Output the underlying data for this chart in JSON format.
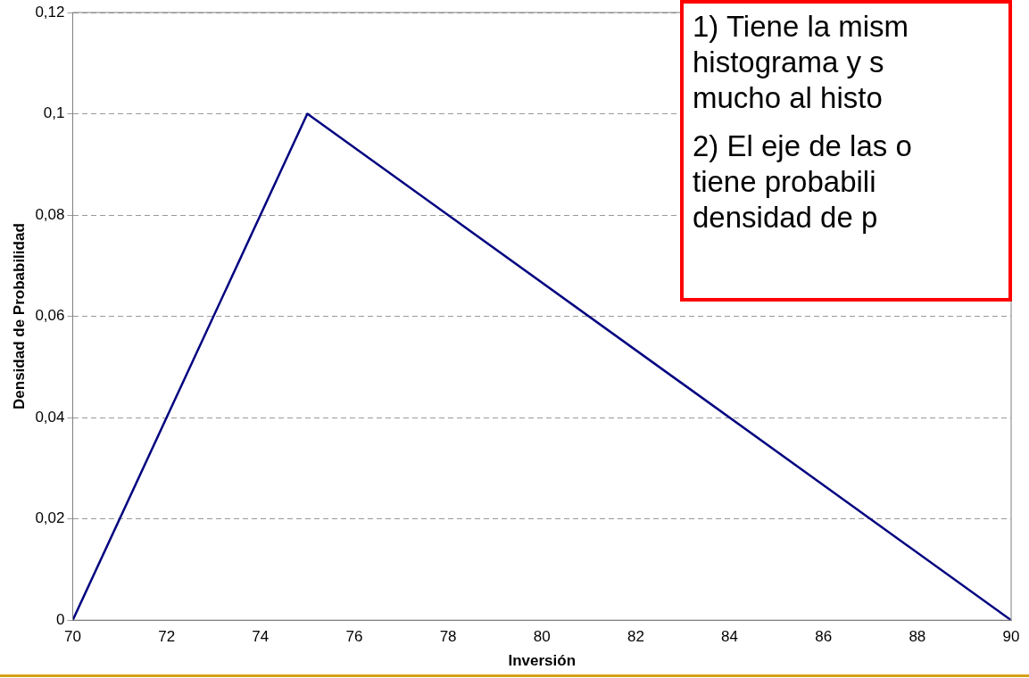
{
  "chart_data": {
    "type": "line",
    "xlabel": "Inversión",
    "ylabel": "Densidad de Probabilidad",
    "x": [
      70,
      75,
      90
    ],
    "series": [
      {
        "color": "#000080",
        "values": [
          0,
          0.1,
          0
        ]
      }
    ],
    "xlim": [
      70,
      90
    ],
    "xticks": [
      70,
      72,
      74,
      76,
      78,
      80,
      82,
      84,
      86,
      88,
      90
    ],
    "ylim": [
      0,
      0.12
    ],
    "yticks": [
      0,
      {
        "value": 0.02,
        "label": "0,02"
      },
      {
        "value": 0.04,
        "label": "0,04"
      },
      {
        "value": 0.06,
        "label": "0,06"
      },
      {
        "value": 0.08,
        "label": "0,08"
      },
      {
        "value": 0.1,
        "label": "0,1"
      },
      {
        "value": 0.12,
        "label": "0,12"
      }
    ],
    "grid": "y",
    "marker": "none",
    "line_style": "solid",
    "legend": false,
    "annotations": [
      "1) Tiene la mism\nhistograma y s\nmucho al histo",
      "2) El eje de las o\ntiene probabili\ndensidad de p"
    ]
  }
}
